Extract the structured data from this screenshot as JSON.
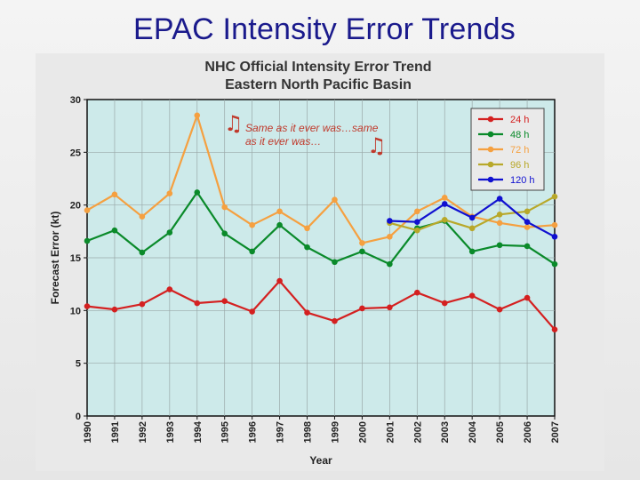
{
  "slide": {
    "title": "EPAC Intensity Error Trends"
  },
  "annotation": {
    "text": "Same as it ever was…same as it ever was…",
    "icon": "music-note-icon",
    "color": "#c0392b"
  },
  "chart_data": {
    "type": "line",
    "title": "NHC Official Intensity Error Trend",
    "subtitle": "Eastern North Pacific Basin",
    "xlabel": "Year",
    "ylabel": "Forecast Error (kt)",
    "ylim": [
      0,
      30
    ],
    "yticks": [
      "0",
      "5",
      "10",
      "15",
      "20",
      "25",
      "30"
    ],
    "grid": true,
    "legend_position": "top-right",
    "background_color": "#cdeaea",
    "categories": [
      "1990",
      "1991",
      "1992",
      "1993",
      "1994",
      "1995",
      "1996",
      "1997",
      "1998",
      "1999",
      "2000",
      "2001",
      "2002",
      "2003",
      "2004",
      "2005",
      "2006",
      "2007"
    ],
    "series": [
      {
        "name": "24 h",
        "color": "#d42020",
        "values": [
          10.4,
          10.1,
          10.6,
          12.0,
          10.7,
          10.9,
          9.9,
          12.8,
          9.8,
          9.0,
          10.2,
          10.3,
          11.7,
          10.7,
          11.4,
          10.1,
          11.2,
          8.2
        ]
      },
      {
        "name": "48 h",
        "color": "#0a8a2a",
        "values": [
          16.6,
          17.6,
          15.5,
          17.4,
          21.2,
          17.3,
          15.6,
          18.1,
          16.0,
          14.6,
          15.6,
          14.4,
          17.8,
          18.5,
          15.6,
          16.2,
          16.1,
          14.4
        ]
      },
      {
        "name": "72 h",
        "color": "#f5a040",
        "values": [
          19.5,
          21.0,
          18.9,
          21.1,
          28.5,
          19.8,
          18.1,
          19.4,
          17.8,
          20.5,
          16.4,
          17.0,
          19.4,
          20.7,
          18.9,
          18.3,
          17.9,
          18.1
        ]
      },
      {
        "name": "96 h",
        "color": "#b8a82a",
        "values": [
          null,
          null,
          null,
          null,
          null,
          null,
          null,
          null,
          null,
          null,
          null,
          18.3,
          17.6,
          18.6,
          17.8,
          19.1,
          19.4,
          20.8
        ]
      },
      {
        "name": "120 h",
        "color": "#1010d0",
        "values": [
          null,
          null,
          null,
          null,
          null,
          null,
          null,
          null,
          null,
          null,
          null,
          18.5,
          18.4,
          20.1,
          18.8,
          20.6,
          18.4,
          17.0
        ]
      }
    ]
  }
}
